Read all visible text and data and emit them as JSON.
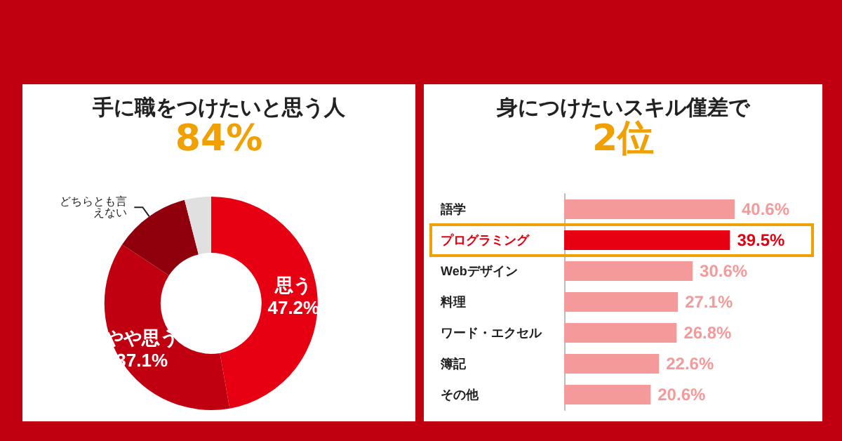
{
  "chart_data": [
    {
      "type": "donut",
      "title": "手に職をつけたいと思う人",
      "subtitle": "84%",
      "categories": [
        "思う",
        "やや思う",
        "どちらとも言えない",
        null
      ],
      "values": [
        47.2,
        37.1,
        11.7,
        4.0
      ],
      "colors": [
        "#e60012",
        "#c00010",
        "#8f000c",
        "#e0e0e0"
      ],
      "value_labels": [
        "47.2%",
        "37.1%",
        null,
        null
      ]
    },
    {
      "type": "bar",
      "orientation": "horizontal",
      "title": "身につけたいスキル僅差で",
      "subtitle": "2位",
      "categories": [
        "語学",
        "プログラミング",
        "Webデザイン",
        "料理",
        "ワード・エクセル",
        "簿記",
        "その他"
      ],
      "values": [
        40.6,
        39.5,
        30.6,
        27.1,
        26.8,
        22.6,
        20.6
      ],
      "colors": [
        "#f59a9a",
        "#e60012",
        "#f59a9a",
        "#f59a9a",
        "#f59a9a",
        "#f59a9a",
        "#f59a9a"
      ],
      "value_labels": [
        "40.6%",
        "39.5%",
        "30.6%",
        "27.1%",
        "26.8%",
        "22.6%",
        "20.6%"
      ]
    }
  ]
}
